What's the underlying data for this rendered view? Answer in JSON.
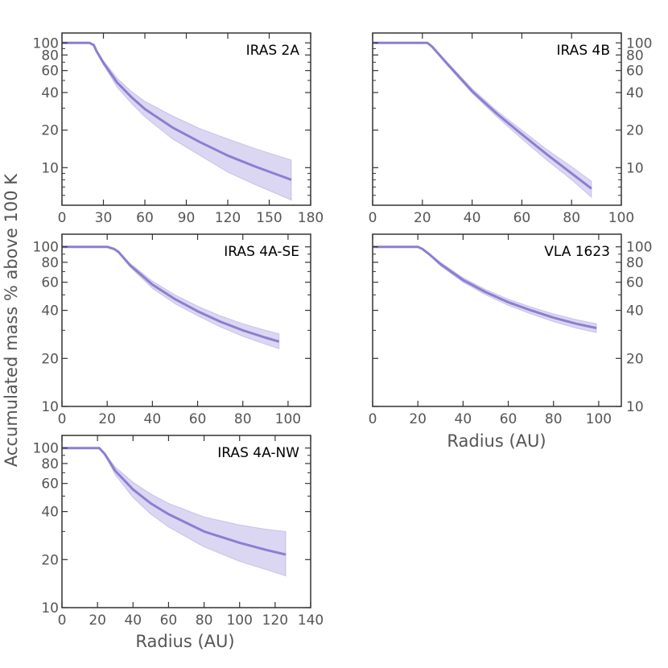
{
  "colors": {
    "line": "#8a7fd1",
    "band": "#b8b0e6",
    "frame": "#333333",
    "text": "#555555"
  },
  "figure": {
    "ylabel": "Accumulated mass % above 100 K",
    "xlabel": "Radius (AU)"
  },
  "chart_data": [
    {
      "type": "line",
      "title": "IRAS 2A",
      "xlabel": "",
      "ylabel": "Accumulated mass % above 100 K",
      "y_scale": "log",
      "xlim": [
        0,
        180
      ],
      "ylim": [
        5,
        120
      ],
      "xticks": [
        0,
        30,
        60,
        90,
        120,
        150,
        180
      ],
      "yticks": [
        10,
        20,
        40,
        60,
        80,
        100
      ],
      "ytick_side": "left",
      "series": [
        {
          "name": "IRAS 2A",
          "x": [
            0,
            20,
            23,
            25,
            30,
            40,
            50,
            60,
            80,
            100,
            120,
            140,
            166
          ],
          "y": [
            100,
            100,
            96,
            86,
            69,
            48,
            37,
            29.5,
            21,
            16,
            12.5,
            10.2,
            8
          ],
          "lower": [
            100,
            100,
            96,
            85,
            67,
            44,
            33,
            25.5,
            17,
            12.5,
            9.2,
            7.3,
            5.5
          ],
          "upper": [
            100,
            100,
            97,
            88,
            72,
            52,
            41,
            34,
            26,
            20.5,
            17,
            14.2,
            11.5
          ]
        }
      ]
    },
    {
      "type": "line",
      "title": "IRAS 4B",
      "xlabel": "",
      "ylabel": "",
      "y_scale": "log",
      "xlim": [
        0,
        100
      ],
      "ylim": [
        5,
        120
      ],
      "xticks": [
        0,
        20,
        40,
        60,
        80,
        100
      ],
      "yticks": [
        10,
        20,
        40,
        60,
        80,
        100
      ],
      "ytick_side": "right",
      "series": [
        {
          "name": "IRAS 4B",
          "x": [
            0,
            22,
            24,
            30,
            40,
            50,
            60,
            70,
            80,
            88
          ],
          "y": [
            100,
            100,
            93,
            68,
            41,
            27,
            18.5,
            12.8,
            9,
            6.8
          ],
          "lower": [
            100,
            100,
            92,
            66,
            39.5,
            25.5,
            17,
            11.5,
            8,
            5.8
          ],
          "upper": [
            100,
            100,
            94,
            70,
            43,
            28.5,
            20,
            14,
            10.2,
            7.8
          ]
        }
      ]
    },
    {
      "type": "line",
      "title": "IRAS 4A-SE",
      "xlabel": "",
      "ylabel": "",
      "y_scale": "log",
      "xlim": [
        0,
        110
      ],
      "ylim": [
        10,
        120
      ],
      "xticks": [
        0,
        20,
        40,
        60,
        80,
        100
      ],
      "yticks": [
        10,
        20,
        40,
        60,
        80,
        100
      ],
      "ytick_side": "left",
      "series": [
        {
          "name": "IRAS 4A-SE",
          "x": [
            0,
            20,
            23,
            25,
            30,
            40,
            50,
            60,
            70,
            80,
            90,
            96
          ],
          "y": [
            100,
            100,
            97,
            93,
            77,
            58,
            47,
            39.5,
            34,
            30,
            27,
            25.5
          ],
          "lower": [
            100,
            100,
            97,
            92,
            75,
            55,
            44,
            37,
            31.5,
            27.5,
            24.5,
            23
          ],
          "upper": [
            100,
            100,
            97,
            94,
            79,
            61,
            50,
            42.5,
            37,
            33,
            30,
            28.5
          ]
        }
      ]
    },
    {
      "type": "line",
      "title": "VLA 1623",
      "xlabel": "Radius (AU)",
      "ylabel": "",
      "y_scale": "log",
      "xlim": [
        0,
        110
      ],
      "ylim": [
        10,
        120
      ],
      "xticks": [
        0,
        20,
        40,
        60,
        80,
        100
      ],
      "yticks": [
        10,
        20,
        40,
        60,
        80,
        100
      ],
      "ytick_side": "right",
      "series": [
        {
          "name": "VLA 1623",
          "x": [
            0,
            20,
            22,
            25,
            30,
            40,
            50,
            60,
            70,
            80,
            90,
            99
          ],
          "y": [
            100,
            100,
            97,
            90,
            78,
            62,
            52,
            45,
            40,
            36,
            33,
            31
          ],
          "lower": [
            100,
            100,
            97,
            89,
            76,
            60,
            50,
            43,
            38,
            34,
            31,
            29
          ],
          "upper": [
            100,
            100,
            97,
            91,
            80,
            64,
            54,
            47,
            42,
            38,
            35,
            33
          ]
        }
      ]
    },
    {
      "type": "line",
      "title": "IRAS 4A-NW",
      "xlabel": "Radius (AU)",
      "ylabel": "",
      "y_scale": "log",
      "xlim": [
        0,
        140
      ],
      "ylim": [
        10,
        120
      ],
      "xticks": [
        0,
        20,
        40,
        60,
        80,
        100,
        120,
        140
      ],
      "yticks": [
        10,
        20,
        40,
        60,
        80,
        100
      ],
      "ytick_side": "left",
      "series": [
        {
          "name": "IRAS 4A-NW",
          "x": [
            0,
            21,
            24,
            30,
            40,
            50,
            60,
            80,
            100,
            115,
            126
          ],
          "y": [
            100,
            100,
            92,
            72,
            55,
            45,
            38.5,
            30,
            25.5,
            23,
            21.5
          ],
          "lower": [
            100,
            100,
            91,
            68,
            49,
            38.5,
            32,
            24,
            19.5,
            17.3,
            15.8
          ],
          "upper": [
            100,
            100,
            93,
            76,
            61,
            51.5,
            45,
            37,
            33,
            31,
            30
          ]
        }
      ]
    }
  ]
}
